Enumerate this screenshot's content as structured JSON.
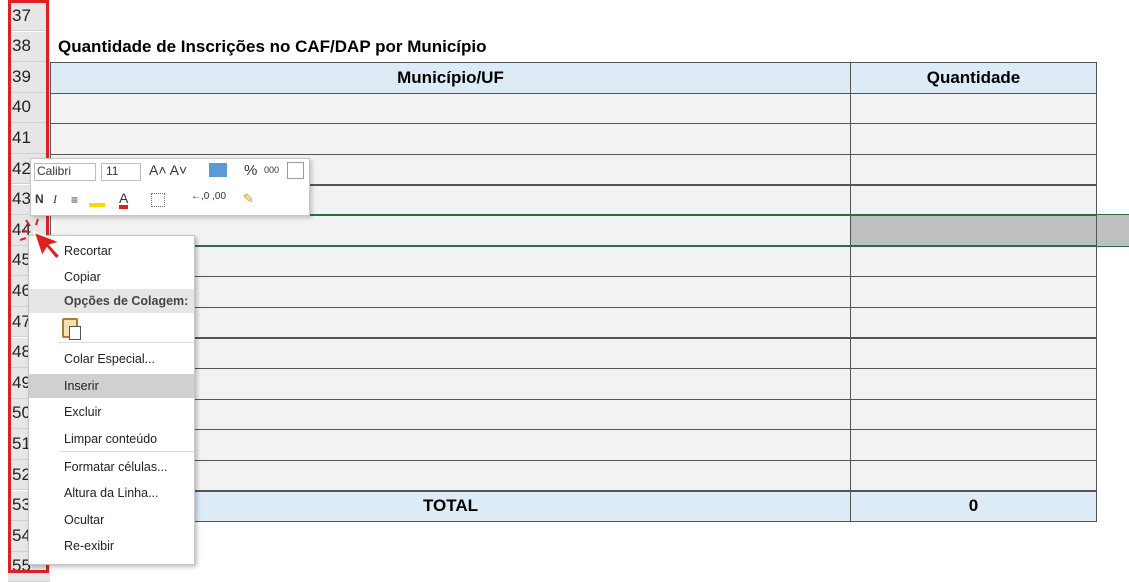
{
  "sheet": {
    "title": "Quantidade de Inscrições no CAF/DAP por Município",
    "header": [
      "Município/UF",
      "Quantidade"
    ],
    "total_label": "TOTAL",
    "total_value": 0,
    "row_numbers": [
      "37",
      "38",
      "39",
      "40",
      "41",
      "42",
      "43",
      "44",
      "45",
      "46",
      "47",
      "48",
      "49",
      "50",
      "51",
      "52",
      "53",
      "54",
      "55"
    ]
  },
  "toolbar": {
    "font": "Calibri",
    "size": "11",
    "percent": "%",
    "thousands": "000",
    "bold": "N",
    "italic": "I"
  },
  "menu": {
    "items": [
      "Recortar",
      "Copiar",
      "Opções de Colagem:",
      "Colar Especial...",
      "Inserir",
      "Excluir",
      "Limpar conteúdo",
      "Formatar células...",
      "Altura da Linha...",
      "Ocultar",
      "Re-exibir"
    ]
  }
}
